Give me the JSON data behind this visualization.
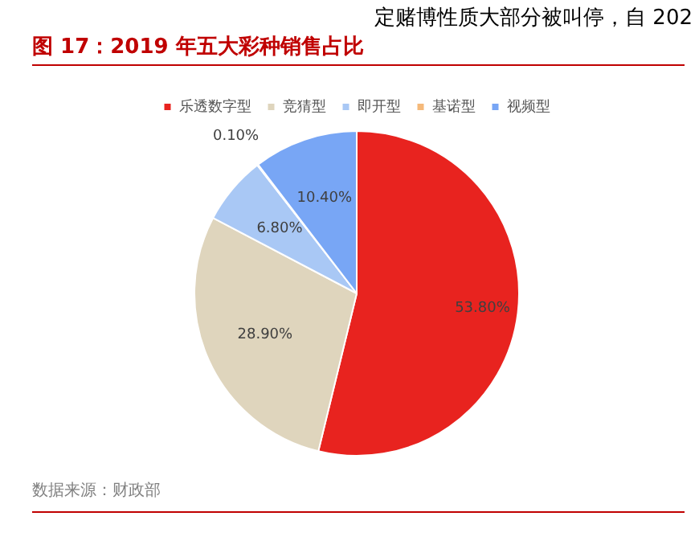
{
  "chart_data": {
    "type": "pie",
    "title": "图 17：2019 年五大彩种销售占比",
    "categories": [
      "乐透数字型",
      "竞猜型",
      "即开型",
      "基诺型",
      "视频型"
    ],
    "values": [
      53.8,
      28.9,
      6.8,
      0.1,
      10.4
    ],
    "colors": [
      "#e8231f",
      "#dfd5bd",
      "#a9c8f5",
      "#f5b97a",
      "#78a6f5"
    ],
    "value_labels": [
      "53.80%",
      "28.90%",
      "6.80%",
      "0.10%",
      "10.40%"
    ],
    "legend": "top",
    "annotations": [
      "定赌博性质大部分被叫停，自 202",
      "数据来源：财政部"
    ]
  }
}
